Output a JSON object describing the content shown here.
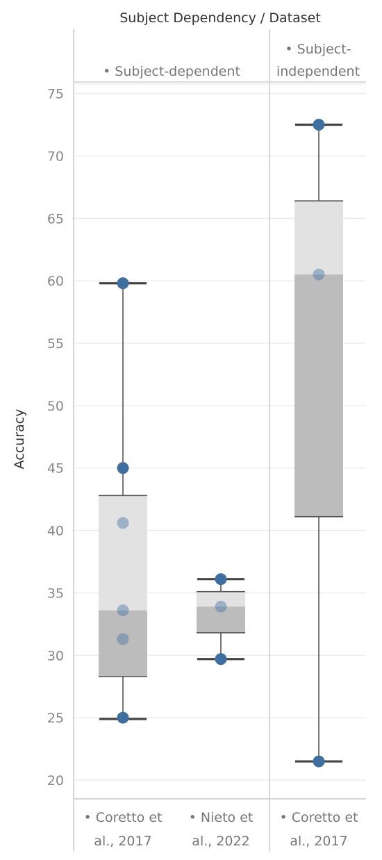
{
  "chart_data": {
    "type": "box",
    "title": "Subject Dependency / Dataset",
    "ylabel": "Accuracy",
    "ylim": [
      18.5,
      75.7
    ],
    "yticks": [
      20,
      25,
      30,
      35,
      40,
      45,
      50,
      55,
      60,
      65,
      70,
      75
    ],
    "grid": true,
    "panels": [
      {
        "header_lines": [
          "• Subject-dependent"
        ],
        "categories": [
          {
            "label_lines": [
              "• Coretto et",
              "al., 2017"
            ],
            "whisker_low": 24.9,
            "q1": 28.3,
            "median": 33.6,
            "q3": 42.8,
            "whisker_high": 59.8,
            "points": [
              59.8,
              45.0,
              40.6,
              33.6,
              31.3,
              25.0
            ]
          },
          {
            "label_lines": [
              "• Nieto et",
              "al., 2022"
            ],
            "whisker_low": 29.7,
            "q1": 31.8,
            "median": 33.9,
            "q3": 35.1,
            "whisker_high": 36.1,
            "points": [
              36.1,
              33.9,
              29.7
            ]
          }
        ]
      },
      {
        "header_lines": [
          "• Subject-",
          "independent"
        ],
        "categories": [
          {
            "label_lines": [
              "• Coretto et",
              "al., 2017"
            ],
            "whisker_low": 21.5,
            "q1": 41.1,
            "median": 60.5,
            "q3": 66.4,
            "whisker_high": 72.5,
            "points": [
              72.5,
              60.5,
              21.5
            ]
          }
        ]
      }
    ],
    "colors": {
      "upper_box": "#e2e2e2",
      "lower_box": "#bcbcbc",
      "point": "#3f6f9f",
      "gridline": "#ececec",
      "divider": "#c8c8c8",
      "whisker": "#555555"
    }
  }
}
